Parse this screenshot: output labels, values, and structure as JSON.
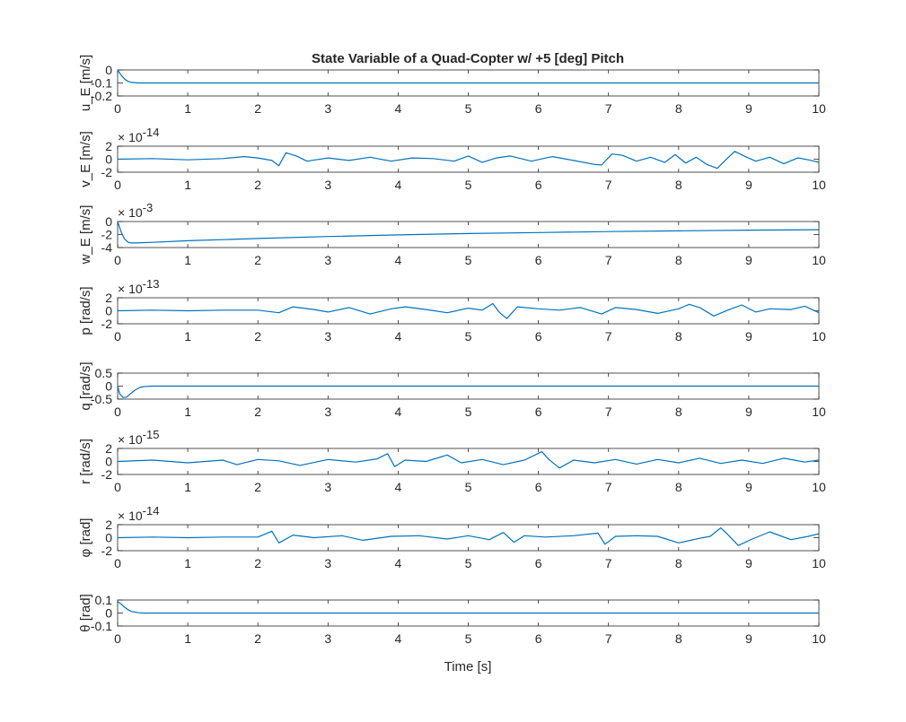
{
  "chart_data": {
    "type": "line",
    "title": "State Variable of a Quad-Copter w/ +5 [deg] Pitch",
    "xlabel": "Time [s]",
    "xlim": [
      0,
      10
    ],
    "xticks": [
      0,
      1,
      2,
      3,
      4,
      5,
      6,
      7,
      8,
      9,
      10
    ],
    "line_color": "#0072BD",
    "axes_color": "#262626",
    "grid": false,
    "subplots": [
      {
        "ylabel": "u_E [m/s]",
        "ylim": [
          -0.2,
          0
        ],
        "yticks": [
          "0",
          "-0.1",
          "-0.2"
        ],
        "ytick_values": [
          0,
          -0.1,
          -0.2
        ],
        "exponent": null,
        "x": [
          0,
          0.05,
          0.1,
          0.15,
          0.2,
          0.3,
          0.4,
          1,
          3,
          5,
          7,
          10
        ],
        "y": [
          0,
          -0.04,
          -0.07,
          -0.088,
          -0.096,
          -0.1,
          -0.1,
          -0.1,
          -0.1,
          -0.1,
          -0.1,
          -0.1
        ]
      },
      {
        "ylabel": "v_E [m/s]",
        "ylim": [
          -2,
          2
        ],
        "yticks": [
          "2",
          "0",
          "-2"
        ],
        "ytick_values": [
          2,
          0,
          -2
        ],
        "exponent": "-14",
        "x": [
          0,
          0.5,
          1,
          1.5,
          1.8,
          2.0,
          2.2,
          2.3,
          2.4,
          2.55,
          2.7,
          3.0,
          3.3,
          3.6,
          3.9,
          4.2,
          4.5,
          4.8,
          5.0,
          5.2,
          5.4,
          5.6,
          5.9,
          6.2,
          6.5,
          6.8,
          6.9,
          7.05,
          7.2,
          7.4,
          7.6,
          7.8,
          7.95,
          8.1,
          8.25,
          8.4,
          8.55,
          8.7,
          8.8,
          8.95,
          9.1,
          9.3,
          9.5,
          9.7,
          9.85,
          10
        ],
        "y": [
          0,
          0.1,
          -0.1,
          0.1,
          0.4,
          0.2,
          -0.2,
          -1.0,
          1.0,
          0.5,
          -0.3,
          0.2,
          -0.2,
          0.3,
          -0.3,
          0.2,
          0.1,
          -0.3,
          0.5,
          -0.5,
          0.2,
          0.5,
          -0.3,
          0.4,
          -0.2,
          -0.8,
          -0.9,
          0.8,
          0.6,
          -0.3,
          0.3,
          -0.5,
          0.7,
          -0.6,
          0.3,
          -0.8,
          -1.4,
          0.2,
          1.2,
          0.4,
          -0.3,
          0.3,
          -0.7,
          0.2,
          -0.1,
          -0.5
        ]
      },
      {
        "ylabel": "w_E [m/s]",
        "ylim": [
          -4,
          0
        ],
        "yticks": [
          "0",
          "-2",
          "-4"
        ],
        "ytick_values": [
          0,
          -2,
          -4
        ],
        "exponent": "-3",
        "x": [
          0,
          0.05,
          0.1,
          0.15,
          0.2,
          0.25,
          0.5,
          1,
          2,
          3,
          4,
          5,
          6,
          7,
          8,
          9,
          10
        ],
        "y": [
          0,
          -1.6,
          -2.7,
          -3.2,
          -3.3,
          -3.3,
          -3.2,
          -2.95,
          -2.6,
          -2.3,
          -2.05,
          -1.85,
          -1.7,
          -1.55,
          -1.43,
          -1.33,
          -1.25
        ]
      },
      {
        "ylabel": "p [rad/s]",
        "ylim": [
          -2,
          2
        ],
        "yticks": [
          "2",
          "0",
          "-2"
        ],
        "ytick_values": [
          2,
          0,
          -2
        ],
        "exponent": "-13",
        "x": [
          0,
          0.5,
          1,
          1.5,
          2.0,
          2.3,
          2.5,
          2.8,
          3.0,
          3.3,
          3.6,
          3.9,
          4.1,
          4.4,
          4.7,
          5.0,
          5.2,
          5.35,
          5.45,
          5.55,
          5.7,
          6.0,
          6.3,
          6.6,
          6.9,
          7.1,
          7.4,
          7.7,
          8.0,
          8.15,
          8.3,
          8.5,
          8.7,
          8.9,
          9.1,
          9.3,
          9.6,
          9.8,
          10
        ],
        "y": [
          0,
          0.1,
          0,
          0.1,
          0.1,
          -0.3,
          0.6,
          0.2,
          -0.2,
          0.5,
          -0.5,
          0.3,
          0.6,
          0.2,
          -0.3,
          0.4,
          0.1,
          1.1,
          -0.3,
          -1.2,
          0.6,
          0.3,
          0.1,
          0.5,
          -0.5,
          0.5,
          0.2,
          -0.4,
          0.3,
          1.0,
          0.5,
          -0.8,
          0.1,
          0.9,
          -0.2,
          0.3,
          0.2,
          0.7,
          -0.3
        ]
      },
      {
        "ylabel": "q [rad/s]",
        "ylim": [
          -0.5,
          0.5
        ],
        "yticks": [
          "0.5",
          "0",
          "-0.5"
        ],
        "ytick_values": [
          0.5,
          0,
          -0.5
        ],
        "exponent": null,
        "x": [
          0,
          0.03,
          0.08,
          0.13,
          0.18,
          0.25,
          0.32,
          0.4,
          0.5,
          1,
          3,
          5,
          7,
          10
        ],
        "y": [
          0,
          -0.3,
          -0.44,
          -0.42,
          -0.3,
          -0.15,
          -0.05,
          -0.01,
          0,
          0,
          0,
          0,
          0,
          0
        ]
      },
      {
        "ylabel": "r [rad/s]",
        "ylim": [
          -2,
          2
        ],
        "yticks": [
          "2",
          "0",
          "-2"
        ],
        "ytick_values": [
          2,
          0,
          -2
        ],
        "exponent": "-15",
        "x": [
          0,
          0.5,
          1,
          1.5,
          1.7,
          2.0,
          2.3,
          2.6,
          3.0,
          3.4,
          3.7,
          3.85,
          3.95,
          4.1,
          4.4,
          4.7,
          4.9,
          5.2,
          5.5,
          5.8,
          6.05,
          6.15,
          6.3,
          6.5,
          6.8,
          7.1,
          7.4,
          7.7,
          8.0,
          8.3,
          8.6,
          8.9,
          9.2,
          9.5,
          9.8,
          10
        ],
        "y": [
          0,
          0.2,
          -0.2,
          0.2,
          -0.5,
          0.3,
          0.1,
          -0.6,
          0.3,
          -0.1,
          0.4,
          1.2,
          -0.8,
          0.2,
          0,
          1.0,
          -0.2,
          0.3,
          -0.5,
          0.2,
          1.5,
          0.3,
          -1.0,
          0.2,
          -0.2,
          0.3,
          -0.4,
          0.3,
          -0.2,
          0.5,
          -0.3,
          0.2,
          -0.3,
          0.5,
          -0.1,
          0.2
        ]
      },
      {
        "ylabel": "φ [rad]",
        "ylim": [
          -2,
          2
        ],
        "yticks": [
          "2",
          "0",
          "-2"
        ],
        "ytick_values": [
          2,
          0,
          -2
        ],
        "exponent": "-14",
        "x": [
          0,
          0.5,
          1,
          1.5,
          2.0,
          2.2,
          2.3,
          2.5,
          2.8,
          3.2,
          3.5,
          3.9,
          4.3,
          4.7,
          5.0,
          5.3,
          5.5,
          5.65,
          5.8,
          6.1,
          6.5,
          6.85,
          6.95,
          7.1,
          7.4,
          7.7,
          8.0,
          8.3,
          8.45,
          8.6,
          8.7,
          8.85,
          9.05,
          9.3,
          9.6,
          9.85,
          10
        ],
        "y": [
          0,
          0.1,
          0,
          0.1,
          0.1,
          1.0,
          -0.8,
          0.4,
          0,
          0.3,
          -0.4,
          0.2,
          0.3,
          -0.2,
          0.3,
          -0.3,
          0.8,
          -0.7,
          0.3,
          0.1,
          0.3,
          0.7,
          -1.0,
          0.2,
          0.3,
          0.2,
          -0.8,
          -0.1,
          0.2,
          1.5,
          0.5,
          -1.2,
          -0.2,
          0.9,
          -0.3,
          0.2,
          0.6
        ]
      },
      {
        "ylabel": "θ [rad]",
        "ylim": [
          -0.1,
          0.1
        ],
        "yticks": [
          "0.1",
          "0",
          "-0.1"
        ],
        "ytick_values": [
          0.1,
          0,
          -0.1
        ],
        "exponent": null,
        "x": [
          0,
          0.05,
          0.1,
          0.15,
          0.2,
          0.3,
          0.4,
          0.5,
          1,
          3,
          5,
          7,
          10
        ],
        "y": [
          0.087,
          0.07,
          0.045,
          0.025,
          0.012,
          0.002,
          -0.001,
          0,
          0,
          0,
          0,
          0,
          0
        ]
      }
    ]
  }
}
